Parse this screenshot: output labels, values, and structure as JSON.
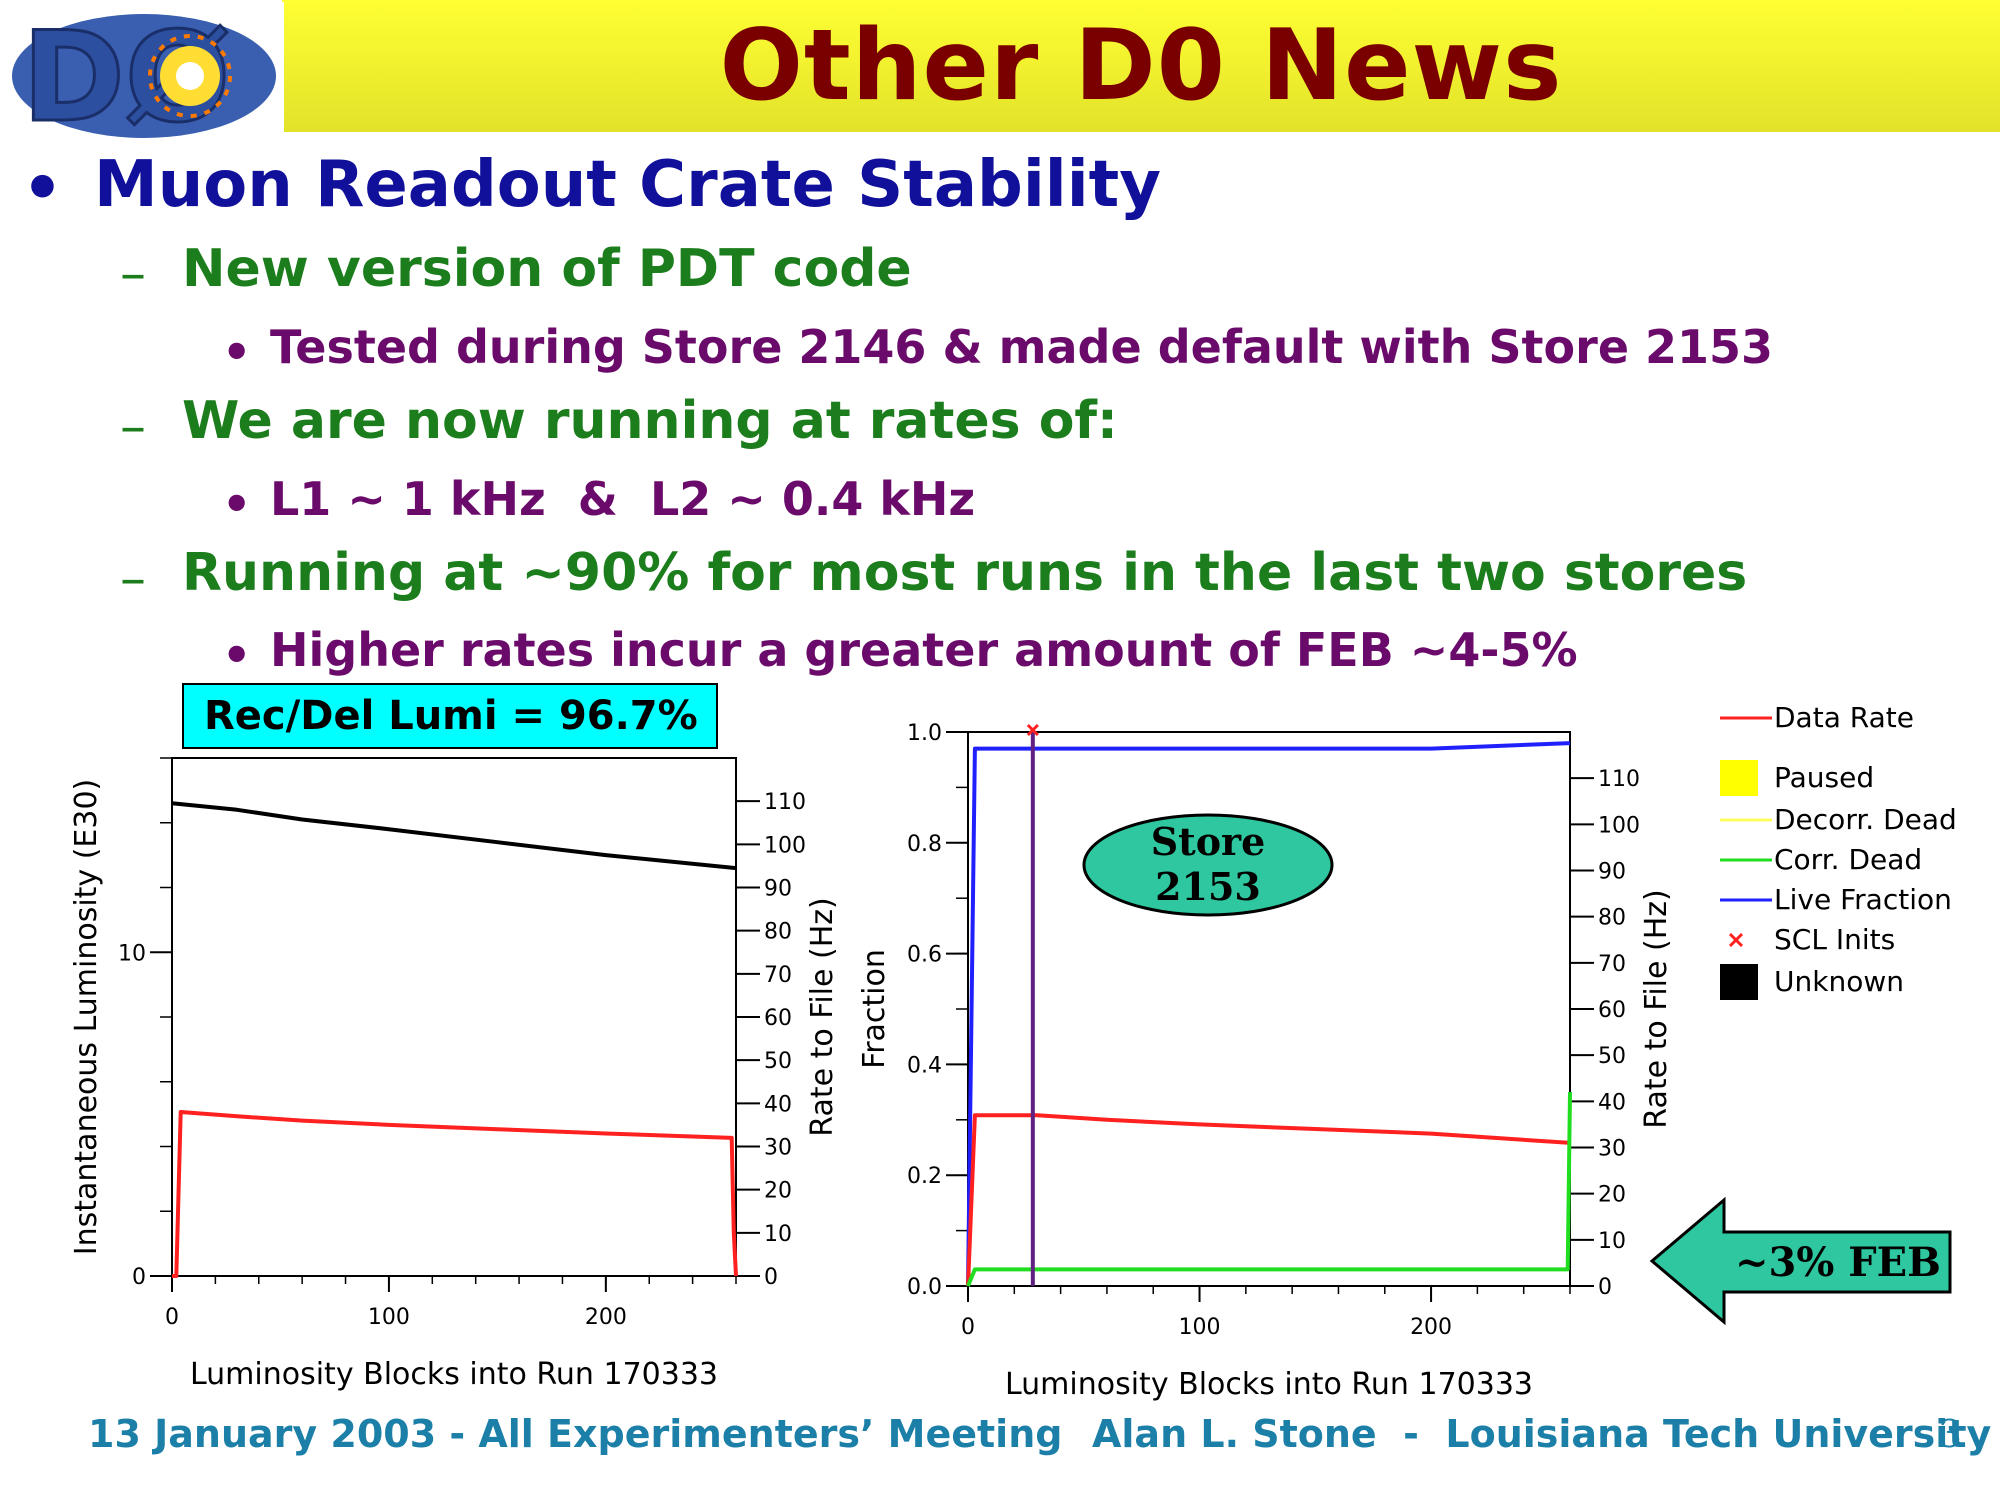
{
  "title": "Other D0 News",
  "logo": {
    "text": "DØ"
  },
  "bullets": {
    "main": "Muon Readout Crate Stability",
    "dash": "–",
    "dot": "•",
    "s1": "New version of PDT code",
    "s1a": "Tested during Store 2146 & made default with Store 2153",
    "s2": "We are now running at rates of:",
    "s2a": "L1 ~ 1 kHz  &  L2 ~ 0.4 kHz",
    "s3": "Running at ~90% for most runs in the last two stores",
    "s3a": "Higher rates incur a greater amount of FEB ~4-5%"
  },
  "lumi_box": "Rec/Del Lumi = 96.7%",
  "store_label": [
    "Store",
    "2153"
  ],
  "feb_label": "~3% FEB",
  "footer": {
    "left": "13 January 2003  - All Experimenters’ Meeting",
    "right": "Alan L. Stone  -  Louisiana Tech University",
    "page": "3"
  },
  "legend": [
    {
      "label": "Data Rate",
      "kind": "line",
      "color": "#ff2020"
    },
    {
      "label": "Paused",
      "kind": "box",
      "color": "#ffff00"
    },
    {
      "label": "Decorr. Dead",
      "kind": "line",
      "color": "#ffff60"
    },
    {
      "label": "Corr. Dead",
      "kind": "line",
      "color": "#20dd20"
    },
    {
      "label": "Live Fraction",
      "kind": "line",
      "color": "#2020ff"
    },
    {
      "label": "SCL Inits",
      "kind": "cross",
      "color": "#ff2020"
    },
    {
      "label": "Unknown",
      "kind": "box",
      "color": "#000000"
    }
  ],
  "chart_data": [
    {
      "type": "line",
      "xlabel": "Luminosity Blocks into Run 170333",
      "ylabel": "Instantaneous Luminosity (E30)",
      "y2label": "Rate to File (Hz)",
      "xlim": [
        0,
        260
      ],
      "xticks": [
        "0",
        "100",
        "200"
      ],
      "ylim": [
        0,
        16
      ],
      "yticks": [
        "0",
        "10"
      ],
      "y2lim": [
        0,
        120
      ],
      "y2ticks": [
        "0",
        "10",
        "20",
        "30",
        "40",
        "50",
        "60",
        "70",
        "80",
        "90",
        "100",
        "110"
      ],
      "series": [
        {
          "axis": "left",
          "color": "#000000",
          "x": [
            0,
            30,
            60,
            100,
            150,
            200,
            260
          ],
          "y": [
            14.6,
            14.4,
            14.1,
            13.8,
            13.4,
            13.0,
            12.6
          ]
        },
        {
          "axis": "right",
          "color": "#ff2020",
          "x": [
            0,
            2,
            4,
            30,
            60,
            100,
            150,
            200,
            258,
            259,
            260
          ],
          "y": [
            0,
            0,
            38,
            37,
            36,
            35,
            34,
            33,
            32,
            10,
            0
          ]
        }
      ]
    },
    {
      "type": "line",
      "xlabel": "Luminosity Blocks into Run 170333",
      "ylabel": "Fraction",
      "y2label": "Rate to File (Hz)",
      "xlim": [
        0,
        260
      ],
      "xticks": [
        "0",
        "100",
        "200"
      ],
      "ylim": [
        0,
        1.0
      ],
      "yticks": [
        "0.0",
        "0.2",
        "0.4",
        "0.6",
        "0.8",
        "1.0"
      ],
      "y2lim": [
        0,
        120
      ],
      "y2ticks": [
        "0",
        "10",
        "20",
        "30",
        "40",
        "50",
        "60",
        "70",
        "80",
        "90",
        "100",
        "110"
      ],
      "series": [
        {
          "name": "Live Fraction",
          "axis": "left",
          "color": "#2020ff",
          "x": [
            0,
            3,
            30,
            100,
            150,
            185,
            200,
            260
          ],
          "y": [
            0.0,
            0.97,
            0.97,
            0.97,
            0.97,
            0.97,
            0.97,
            0.98
          ]
        },
        {
          "name": "Data Rate",
          "axis": "right",
          "color": "#ff2020",
          "x": [
            0,
            3,
            30,
            60,
            100,
            150,
            200,
            260
          ],
          "y": [
            0,
            37,
            37,
            36,
            35,
            34,
            33,
            31
          ]
        },
        {
          "name": "Corr. Dead",
          "axis": "left",
          "color": "#20dd20",
          "x": [
            0,
            3,
            30,
            100,
            150,
            200,
            259,
            260
          ],
          "y": [
            0.0,
            0.03,
            0.03,
            0.03,
            0.03,
            0.03,
            0.03,
            0.35
          ]
        }
      ],
      "scl_inits_x": [
        28
      ]
    }
  ]
}
